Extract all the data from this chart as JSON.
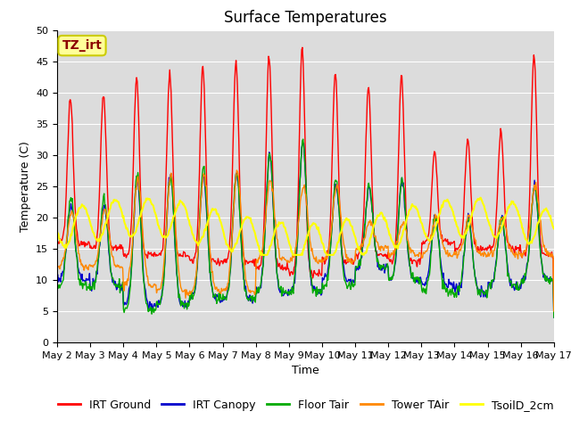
{
  "title": "Surface Temperatures",
  "ylabel": "Temperature (C)",
  "xlabel": "Time",
  "ylim": [
    0,
    50
  ],
  "yticks": [
    0,
    5,
    10,
    15,
    20,
    25,
    30,
    35,
    40,
    45,
    50
  ],
  "x_labels": [
    "May 2",
    "May 3",
    "May 4",
    "May 5",
    "May 6",
    "May 7",
    "May 8",
    "May 9",
    "May 10",
    "May 11",
    "May 12",
    "May 13",
    "May 14",
    "May 15",
    "May 16",
    "May 17"
  ],
  "annotation_text": "TZ_irt",
  "annotation_color": "#8B0000",
  "annotation_bg": "#FFFF99",
  "annotation_border": "#CCCC00",
  "bg_color": "#DCDCDC",
  "fig_bg_color": "#FFFFFF",
  "line_colors": {
    "IRT Ground": "#FF0000",
    "IRT Canopy": "#0000CC",
    "Floor Tair": "#00AA00",
    "Tower TAir": "#FF8800",
    "TsoilD_2cm": "#FFFF00"
  },
  "days": 15,
  "title_fontsize": 12,
  "axis_label_fontsize": 9,
  "tick_fontsize": 8,
  "legend_fontsize": 9
}
